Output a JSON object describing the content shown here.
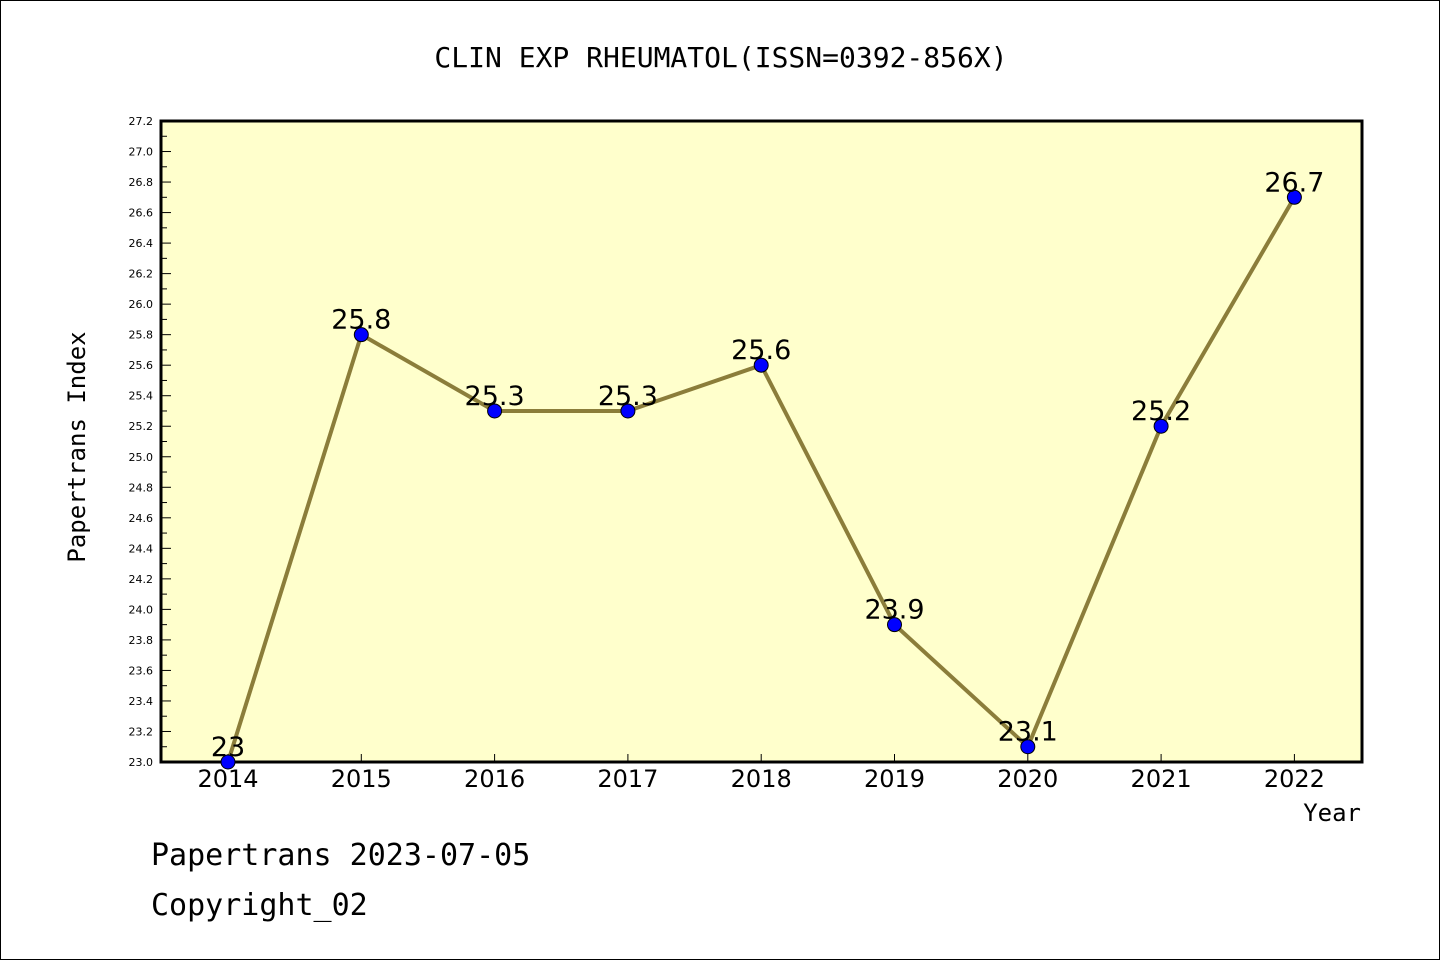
{
  "chart_data": {
    "type": "line",
    "title": "CLIN EXP RHEUMATOL(ISSN=0392-856X)",
    "xlabel": "Year",
    "ylabel": "Papertrans Index",
    "categories": [
      "2014",
      "2015",
      "2016",
      "2017",
      "2018",
      "2019",
      "2020",
      "2021",
      "2022"
    ],
    "series": [
      {
        "values": [
          23.0,
          25.8,
          25.3,
          25.3,
          25.6,
          23.9,
          23.1,
          25.2,
          26.7
        ]
      }
    ],
    "data_labels": [
      "23",
      "25.8",
      "25.3",
      "25.3",
      "25.6",
      "23.9",
      "23.1",
      "25.2",
      "26.7"
    ],
    "ylim": [
      23.0,
      27.2
    ],
    "y_ticks": [
      "23.0",
      "23.2",
      "23.4",
      "23.6",
      "23.8",
      "24.0",
      "24.2",
      "24.4",
      "24.6",
      "24.8",
      "25.0",
      "25.2",
      "25.4",
      "25.6",
      "25.8",
      "26.0",
      "26.2",
      "26.4",
      "26.6",
      "26.8",
      "27.0",
      "27.2"
    ],
    "grid": false,
    "colors": {
      "plot_background": "#ffffcc",
      "line": "#8b7d3a",
      "marker": "#0000ff"
    }
  },
  "footer": {
    "line1": "Papertrans 2023-07-05",
    "line2": "Copyright_02"
  }
}
